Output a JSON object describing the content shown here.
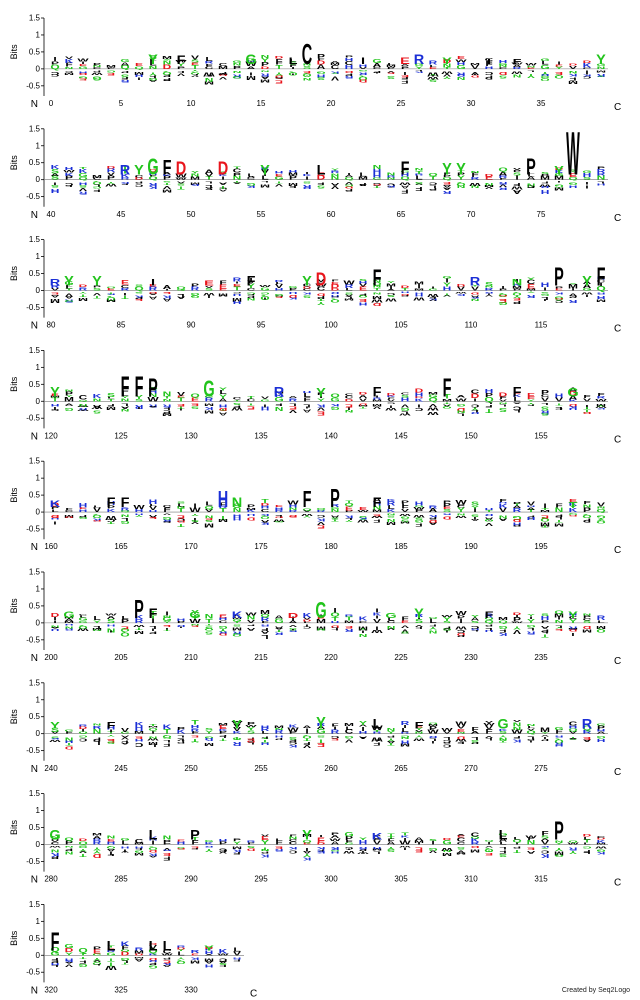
{
  "chart_data": {
    "type": "sequence-logo",
    "ylabel": "Bits",
    "ylim": [
      -0.8,
      1.5
    ],
    "yticks": [
      "1.5",
      "1",
      "0.5",
      "0",
      "-0.5"
    ],
    "n_label": "N",
    "c_label": "C",
    "credit": "Created by Seq2Logo",
    "colors": {
      "acidic": "#e8151c",
      "basic": "#1b2fd6",
      "hydrophobic": "#000000",
      "polar": "#22c41c",
      "other": "#888888"
    },
    "panels": [
      {
        "start": 0,
        "end": 39,
        "xticks": [
          "0",
          "5",
          "10",
          "15",
          "20",
          "25",
          "30",
          "35"
        ],
        "top_letters": [
          [
            18,
            "C",
            0.6
          ],
          [
            7,
            "Y",
            0.3
          ],
          [
            9,
            "F",
            0.25
          ],
          [
            14,
            "G",
            0.3
          ],
          [
            17,
            "L",
            0.2
          ],
          [
            22,
            "I",
            0.2
          ],
          [
            25,
            "E",
            0.2
          ],
          [
            26,
            "R",
            0.3
          ],
          [
            28,
            "Y",
            0.2
          ],
          [
            31,
            "I",
            0.15
          ],
          [
            33,
            "F",
            0.15
          ],
          [
            39,
            "Y",
            0.3
          ]
        ]
      },
      {
        "start": 40,
        "end": 79,
        "xticks": [
          "40",
          "45",
          "50",
          "55",
          "60",
          "65",
          "70",
          "75"
        ],
        "top_letters": [
          [
            45,
            "R",
            0.3
          ],
          [
            46,
            "Y",
            0.3
          ],
          [
            47,
            "G",
            0.5
          ],
          [
            48,
            "F",
            0.45
          ],
          [
            49,
            "D",
            0.4
          ],
          [
            52,
            "D",
            0.4
          ],
          [
            55,
            "Y",
            0.3
          ],
          [
            59,
            "L",
            0.3
          ],
          [
            65,
            "F",
            0.4
          ],
          [
            68,
            "Y",
            0.35
          ],
          [
            69,
            "Y",
            0.35
          ],
          [
            74,
            "P",
            0.5
          ],
          [
            76,
            "Y",
            0.25
          ],
          [
            77,
            "W",
            1.3
          ]
        ]
      },
      {
        "start": 80,
        "end": 119,
        "xticks": [
          "80",
          "85",
          "90",
          "95",
          "100",
          "105",
          "110",
          "115"
        ],
        "top_letters": [
          [
            80,
            "R",
            0.2
          ],
          [
            81,
            "Y",
            0.3
          ],
          [
            83,
            "Y",
            0.3
          ],
          [
            87,
            "I",
            0.2
          ],
          [
            91,
            "E",
            0.15
          ],
          [
            94,
            "F",
            0.3
          ],
          [
            98,
            "Y",
            0.3
          ],
          [
            99,
            "D",
            0.4
          ],
          [
            103,
            "F",
            0.5
          ],
          [
            110,
            "R",
            0.25
          ],
          [
            113,
            "N",
            0.2
          ],
          [
            116,
            "P",
            0.55
          ],
          [
            118,
            "Y",
            0.3
          ],
          [
            119,
            "F",
            0.55
          ]
        ]
      },
      {
        "start": 120,
        "end": 159,
        "xticks": [
          "120",
          "125",
          "130",
          "135",
          "140",
          "145",
          "150",
          "155"
        ],
        "top_letters": [
          [
            120,
            "Y",
            0.3
          ],
          [
            125,
            "F",
            0.6
          ],
          [
            126,
            "F",
            0.6
          ],
          [
            127,
            "P",
            0.55
          ],
          [
            131,
            "G",
            0.5
          ],
          [
            136,
            "R",
            0.3
          ],
          [
            139,
            "Y",
            0.25
          ],
          [
            143,
            "F",
            0.3
          ],
          [
            148,
            "F",
            0.55
          ],
          [
            153,
            "F",
            0.3
          ],
          [
            157,
            "G",
            0.25
          ]
        ]
      },
      {
        "start": 160,
        "end": 199,
        "xticks": [
          "160",
          "165",
          "170",
          "175",
          "180",
          "185",
          "190",
          "195"
        ],
        "top_letters": [
          [
            160,
            "K",
            0.2
          ],
          [
            164,
            "F",
            0.3
          ],
          [
            165,
            "F",
            0.3
          ],
          [
            172,
            "H",
            0.5
          ],
          [
            173,
            "N",
            0.3
          ],
          [
            178,
            "F",
            0.5
          ],
          [
            180,
            "P",
            0.55
          ],
          [
            183,
            "F",
            0.3
          ],
          [
            197,
            "T",
            0.15
          ]
        ]
      },
      {
        "start": 200,
        "end": 239,
        "xticks": [
          "200",
          "205",
          "210",
          "215",
          "220",
          "225",
          "230",
          "235"
        ],
        "top_letters": [
          [
            201,
            "G",
            0.2
          ],
          [
            206,
            "P",
            0.55
          ],
          [
            207,
            "F",
            0.3
          ],
          [
            210,
            "G",
            0.2
          ],
          [
            213,
            "K",
            0.2
          ],
          [
            217,
            "D",
            0.15
          ],
          [
            219,
            "G",
            0.5
          ],
          [
            224,
            "G",
            0.15
          ],
          [
            226,
            "Y",
            0.3
          ],
          [
            231,
            "F",
            0.2
          ],
          [
            237,
            "Y",
            0.2
          ]
        ]
      },
      {
        "start": 240,
        "end": 279,
        "xticks": [
          "240",
          "245",
          "250",
          "255",
          "260",
          "265",
          "270",
          "275"
        ],
        "top_letters": [
          [
            240,
            "Y",
            0.2
          ],
          [
            244,
            "F",
            0.2
          ],
          [
            253,
            "Y",
            0.25
          ],
          [
            259,
            "Y",
            0.35
          ],
          [
            263,
            "L",
            0.3
          ],
          [
            266,
            "F",
            0.2
          ],
          [
            272,
            "G",
            0.3
          ],
          [
            278,
            "R",
            0.3
          ]
        ]
      },
      {
        "start": 280,
        "end": 319,
        "xticks": [
          "280",
          "285",
          "290",
          "295",
          "300",
          "305",
          "310",
          "315"
        ],
        "top_letters": [
          [
            280,
            "G",
            0.3
          ],
          [
            287,
            "L",
            0.3
          ],
          [
            290,
            "P",
            0.3
          ],
          [
            298,
            "Y",
            0.3
          ],
          [
            303,
            "K",
            0.2
          ],
          [
            312,
            "L",
            0.3
          ],
          [
            316,
            "P",
            0.55
          ]
        ]
      },
      {
        "start": 320,
        "end": 333,
        "xticks": [
          "320",
          "325",
          "330"
        ],
        "top_letters": [
          [
            320,
            "F",
            0.55
          ],
          [
            324,
            "L",
            0.3
          ],
          [
            327,
            "L",
            0.3
          ],
          [
            328,
            "L",
            0.3
          ],
          [
            331,
            "Y",
            0.15
          ]
        ]
      }
    ]
  }
}
